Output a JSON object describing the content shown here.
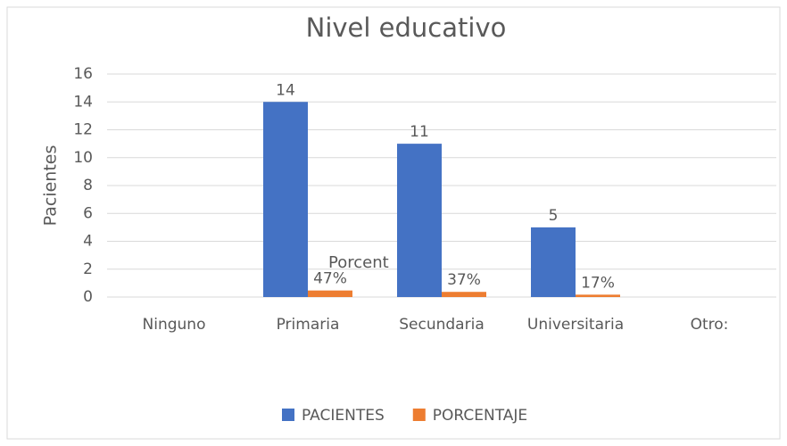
{
  "chart_data": {
    "type": "bar",
    "title": "Nivel educativo",
    "y_label": "Pacientes",
    "categories": [
      "Ninguno",
      "Primaria",
      "Secundaria",
      "Universitaria",
      "Otro:"
    ],
    "series": [
      {
        "name": "PACIENTES",
        "color": "#4472c4",
        "values": [
          null,
          14,
          11,
          5,
          null
        ]
      },
      {
        "name": "PORCENTAJE",
        "color": "#ed7d31",
        "values": [
          null,
          0.47,
          0.37,
          0.17,
          null
        ],
        "value_labels": [
          null,
          "47%",
          "37%",
          "17%",
          null
        ]
      }
    ],
    "annotation": "Porcent",
    "ylim": [
      0,
      16
    ],
    "yticks": [
      0,
      2,
      4,
      6,
      8,
      10,
      12,
      14,
      16
    ],
    "grid": true,
    "legend": "bottom"
  }
}
